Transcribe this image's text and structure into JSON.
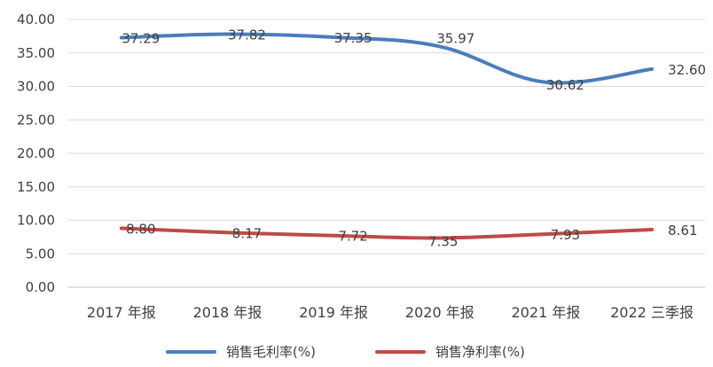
{
  "chart_data": {
    "type": "line",
    "title": "",
    "xlabel": "",
    "ylabel": "",
    "categories": [
      "2017 年报",
      "2018 年报",
      "2019 年报",
      "2020 年报",
      "2021 年报",
      "2022 三季报"
    ],
    "ylim": [
      0,
      40
    ],
    "yticks": [
      "0.00",
      "5.00",
      "10.00",
      "15.00",
      "20.00",
      "25.00",
      "30.00",
      "35.00",
      "40.00"
    ],
    "grid": true,
    "legend_position": "bottom",
    "series": [
      {
        "name": "销售毛利率(%)",
        "color": "#4a7ebb",
        "values": [
          37.29,
          37.82,
          37.35,
          35.97,
          30.62,
          32.6
        ],
        "labels": [
          "37.29",
          "37.82",
          "37.35",
          "35.97",
          "30.62",
          "32.60"
        ]
      },
      {
        "name": "销售净利率(%)",
        "color": "#be4b48",
        "values": [
          8.8,
          8.17,
          7.72,
          7.35,
          7.93,
          8.61
        ],
        "labels": [
          "8.80",
          "8.17",
          "7.72",
          "7.35",
          "7.93",
          "8.61"
        ]
      }
    ]
  }
}
